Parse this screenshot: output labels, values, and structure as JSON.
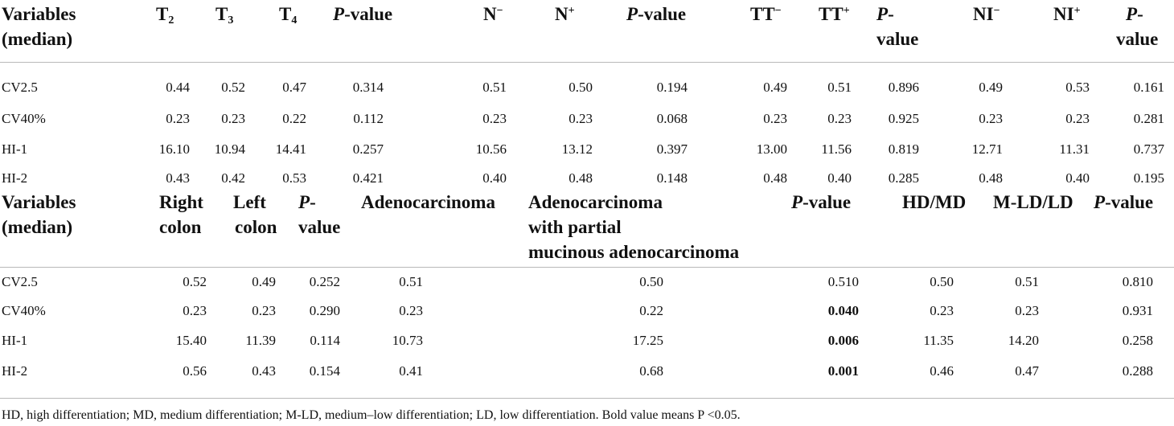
{
  "section1": {
    "headers": {
      "variables": "Variables",
      "median": "(median)",
      "t2": "T",
      "t2_sub": "2",
      "t3": "T",
      "t3_sub": "3",
      "t4": "T",
      "t4_sub": "4",
      "p1": "P",
      "p1_rest": "-value",
      "nminus": "N",
      "nminus_sup": "−",
      "nplus": "N",
      "nplus_sup": "+",
      "p2": "P",
      "p2_rest": "-value",
      "ttminus": "TT",
      "ttminus_sup": "−",
      "ttplus": "TT",
      "ttplus_sup": "+",
      "p3": "P",
      "p3_rest": "-",
      "p3_line2": "value",
      "niminus": "NI",
      "niminus_sup": "−",
      "niplus": "NI",
      "niplus_sup": "+",
      "p4": "P",
      "p4_rest": "-",
      "p4_line2": "value"
    },
    "rows": [
      {
        "label": "CV2.5",
        "t2": "0.44",
        "t3": "0.52",
        "t4": "0.47",
        "p1": "0.314",
        "nminus": "0.51",
        "nplus": "0.50",
        "p2": "0.194",
        "ttminus": "0.49",
        "ttplus": "0.51",
        "p3": "0.896",
        "niminus": "0.49",
        "niplus": "0.53",
        "p4": "0.161"
      },
      {
        "label": "CV40%",
        "t2": "0.23",
        "t3": "0.23",
        "t4": "0.22",
        "p1": "0.112",
        "nminus": "0.23",
        "nplus": "0.23",
        "p2": "0.068",
        "ttminus": "0.23",
        "ttplus": "0.23",
        "p3": "0.925",
        "niminus": "0.23",
        "niplus": "0.23",
        "p4": "0.281"
      },
      {
        "label": "HI-1",
        "t2": "16.10",
        "t3": "10.94",
        "t4": "14.41",
        "p1": "0.257",
        "nminus": "10.56",
        "nplus": "13.12",
        "p2": "0.397",
        "ttminus": "13.00",
        "ttplus": "11.56",
        "p3": "0.819",
        "niminus": "12.71",
        "niplus": "11.31",
        "p4": "0.737"
      },
      {
        "label": "HI-2",
        "t2": "0.43",
        "t3": "0.42",
        "t4": "0.53",
        "p1": "0.421",
        "nminus": "0.40",
        "nplus": "0.48",
        "p2": "0.148",
        "ttminus": "0.48",
        "ttplus": "0.40",
        "p3": "0.285",
        "niminus": "0.48",
        "niplus": "0.40",
        "p4": "0.195"
      }
    ]
  },
  "section2": {
    "headers": {
      "variables": "Variables",
      "median": "(median)",
      "right1": "Right",
      "right2": "colon",
      "left1": "Left",
      "left2": "colon",
      "p1": "P",
      "p1_rest": "-",
      "p1_line2": "value",
      "adeno": "Adenocarcinoma",
      "mucin1": "Adenocarcinoma",
      "mucin2": "with partial",
      "mucin3": "mucinous adenocarcinoma",
      "p2": "P",
      "p2_rest": "-value",
      "hdmd": "HD/MD",
      "mldld": "M-LD/LD",
      "p3": "P",
      "p3_rest": "-value"
    },
    "rows": [
      {
        "label": "CV2.5",
        "right": "0.52",
        "left": "0.49",
        "p1": "0.252",
        "adeno": "0.51",
        "mucin": "0.50",
        "p2": "0.510",
        "p2_bold": false,
        "hdmd": "0.50",
        "mldld": "0.51",
        "p3": "0.810"
      },
      {
        "label": "CV40%",
        "right": "0.23",
        "left": "0.23",
        "p1": "0.290",
        "adeno": "0.23",
        "mucin": "0.22",
        "p2": "0.040",
        "p2_bold": true,
        "hdmd": "0.23",
        "mldld": "0.23",
        "p3": "0.931"
      },
      {
        "label": "HI-1",
        "right": "15.40",
        "left": "11.39",
        "p1": "0.114",
        "adeno": "10.73",
        "mucin": "17.25",
        "p2": "0.006",
        "p2_bold": true,
        "hdmd": "11.35",
        "mldld": "14.20",
        "p3": "0.258"
      },
      {
        "label": "HI-2",
        "right": "0.56",
        "left": "0.43",
        "p1": "0.154",
        "adeno": "0.41",
        "mucin": "0.68",
        "p2": "0.001",
        "p2_bold": true,
        "hdmd": "0.46",
        "mldld": "0.47",
        "p3": "0.288"
      }
    ]
  },
  "footnote": "HD, high differentiation; MD, medium differentiation; M-LD, medium–low differentiation; LD, low differentiation. Bold value means P <0.05."
}
